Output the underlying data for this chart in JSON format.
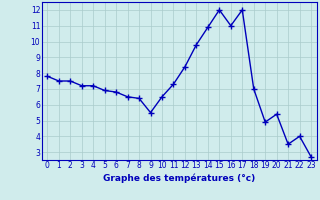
{
  "x": [
    0,
    1,
    2,
    3,
    4,
    5,
    6,
    7,
    8,
    9,
    10,
    11,
    12,
    13,
    14,
    15,
    16,
    17,
    18,
    19,
    20,
    21,
    22,
    23
  ],
  "y": [
    7.8,
    7.5,
    7.5,
    7.2,
    7.2,
    6.9,
    6.8,
    6.5,
    6.4,
    5.5,
    6.5,
    7.3,
    8.4,
    9.8,
    10.9,
    12.0,
    11.0,
    12.0,
    7.0,
    4.9,
    5.4,
    3.5,
    4.0,
    2.7
  ],
  "line_color": "#0000bb",
  "marker": "+",
  "marker_size": 4,
  "marker_lw": 1.0,
  "bg_color": "#d0ecec",
  "grid_color": "#aacccc",
  "xlabel": "Graphe des températures (°c)",
  "xlabel_color": "#0000bb",
  "xlabel_fontsize": 6.5,
  "tick_color": "#0000bb",
  "tick_fontsize": 5.5,
  "ylim": [
    2.5,
    12.5
  ],
  "yticks": [
    3,
    4,
    5,
    6,
    7,
    8,
    9,
    10,
    11,
    12
  ],
  "xlim": [
    -0.5,
    23.5
  ],
  "xticks": [
    0,
    1,
    2,
    3,
    4,
    5,
    6,
    7,
    8,
    9,
    10,
    11,
    12,
    13,
    14,
    15,
    16,
    17,
    18,
    19,
    20,
    21,
    22,
    23
  ],
  "line_width": 1.0
}
